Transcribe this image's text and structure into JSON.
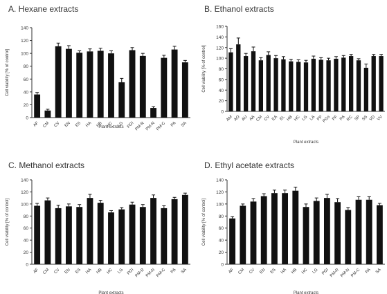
{
  "chart_data": [
    {
      "type": "bar",
      "title": "A. Hexane extracts",
      "xlabel": "Plant extracts",
      "ylabel": "Cell viability [% of control]",
      "ylim": [
        0,
        140
      ],
      "yticks": [
        0,
        20,
        40,
        60,
        80,
        100,
        120,
        140
      ],
      "bar_color": "#111111",
      "categories": [
        "AF",
        "CM",
        "CV",
        "EN",
        "ES",
        "HA",
        "HB",
        "HC",
        "LG",
        "PGI",
        "PM-R",
        "PM-N",
        "PM-C",
        "PA",
        "SA"
      ],
      "values": [
        36,
        11,
        111,
        107,
        101,
        103,
        104,
        100,
        55,
        105,
        96,
        15,
        93,
        106,
        86
      ],
      "errors": [
        3,
        2,
        5,
        5,
        3,
        4,
        4,
        4,
        6,
        4,
        4,
        2,
        4,
        5,
        3
      ]
    },
    {
      "type": "bar",
      "title": "B. Ethanol extracts",
      "xlabel": "Plant extracts",
      "ylabel": "Cell viability [% of control]",
      "ylim": [
        0,
        160
      ],
      "yticks": [
        0,
        20,
        40,
        60,
        80,
        100,
        120,
        140,
        160
      ],
      "bar_color": "#111111",
      "categories": [
        "AM",
        "AO",
        "AU",
        "AA",
        "CM",
        "CV",
        "EA",
        "EL",
        "HB",
        "HC",
        "LG",
        "LA",
        "PP",
        "PGs",
        "PF",
        "PA",
        "RC",
        "SP",
        "SS",
        "VD",
        "VV"
      ],
      "values": [
        111,
        126,
        104,
        113,
        96,
        106,
        100,
        98,
        94,
        93,
        92,
        99,
        97,
        96,
        99,
        101,
        104,
        96,
        82,
        104,
        104
      ],
      "errors": [
        7,
        12,
        5,
        8,
        5,
        6,
        5,
        5,
        4,
        4,
        4,
        5,
        4,
        4,
        4,
        4,
        3,
        3,
        7,
        3,
        3
      ]
    },
    {
      "type": "bar",
      "title": "C. Methanol extracts",
      "xlabel": "Plant extracts",
      "ylabel": "Cell viability [% of control]",
      "ylim": [
        0,
        140
      ],
      "yticks": [
        0,
        20,
        40,
        60,
        80,
        100,
        120,
        140
      ],
      "bar_color": "#111111",
      "categories": [
        "AF",
        "CM",
        "CV",
        "EN",
        "ES",
        "HA",
        "HB",
        "HC",
        "LG",
        "PGI",
        "PM-R",
        "PM-N",
        "PM-C",
        "PA",
        "SA"
      ],
      "values": [
        97,
        106,
        93,
        96,
        95,
        110,
        102,
        86,
        91,
        99,
        95,
        110,
        93,
        108,
        115
      ],
      "errors": [
        4,
        4,
        5,
        4,
        4,
        6,
        4,
        3,
        3,
        4,
        4,
        5,
        4,
        3,
        3
      ]
    },
    {
      "type": "bar",
      "title": "D. Ethyl acetate extracts",
      "xlabel": "Plant extracts",
      "ylabel": "Cell viability [% of control]",
      "ylim": [
        0,
        140
      ],
      "yticks": [
        0,
        20,
        40,
        60,
        80,
        100,
        120,
        140
      ],
      "bar_color": "#111111",
      "categories": [
        "AF",
        "CM",
        "CV",
        "EN",
        "ES",
        "HA",
        "HB",
        "HC",
        "LG",
        "PGI",
        "PM-R",
        "PM-N",
        "PM-C",
        "PA",
        "SA"
      ],
      "values": [
        76,
        97,
        104,
        113,
        118,
        118,
        122,
        95,
        105,
        110,
        103,
        90,
        107,
        107,
        98
      ],
      "errors": [
        3,
        3,
        5,
        4,
        5,
        5,
        6,
        5,
        5,
        6,
        6,
        4,
        5,
        5,
        3
      ]
    }
  ]
}
